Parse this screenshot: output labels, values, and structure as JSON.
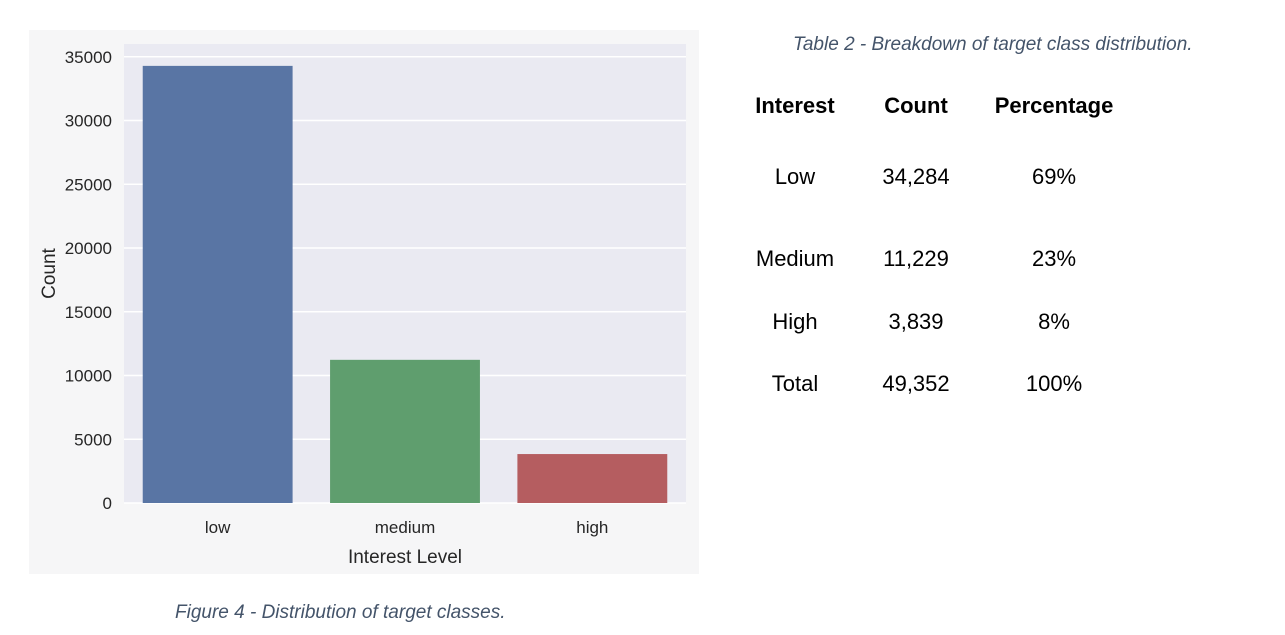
{
  "figure_caption": "Figure 4 - Distribution of target classes.",
  "table_caption": "Table 2 - Breakdown of target class distribution.",
  "table": {
    "headers": [
      "Interest",
      "Count",
      "Percentage"
    ],
    "rows": [
      [
        "Low",
        "34,284",
        "69%"
      ],
      [
        "Medium",
        "11,229",
        "23%"
      ],
      [
        "High",
        "3,839",
        "8%"
      ],
      [
        "Total",
        "49,352",
        "100%"
      ]
    ]
  },
  "chart_data": {
    "type": "bar",
    "categories": [
      "low",
      "medium",
      "high"
    ],
    "values": [
      34284,
      11229,
      3839
    ],
    "colors": [
      "#5975a4",
      "#5f9e6e",
      "#b55d60"
    ],
    "xlabel": "Interest Level",
    "ylabel": "Count",
    "ylim": [
      0,
      36000
    ],
    "yticks": [
      0,
      5000,
      10000,
      15000,
      20000,
      25000,
      30000,
      35000
    ],
    "ytick_labels": [
      "0",
      "5000",
      "10000",
      "15000",
      "20000",
      "25000",
      "30000",
      "35000"
    ],
    "grid": true,
    "background": "#eaeaf2",
    "legend": false
  }
}
